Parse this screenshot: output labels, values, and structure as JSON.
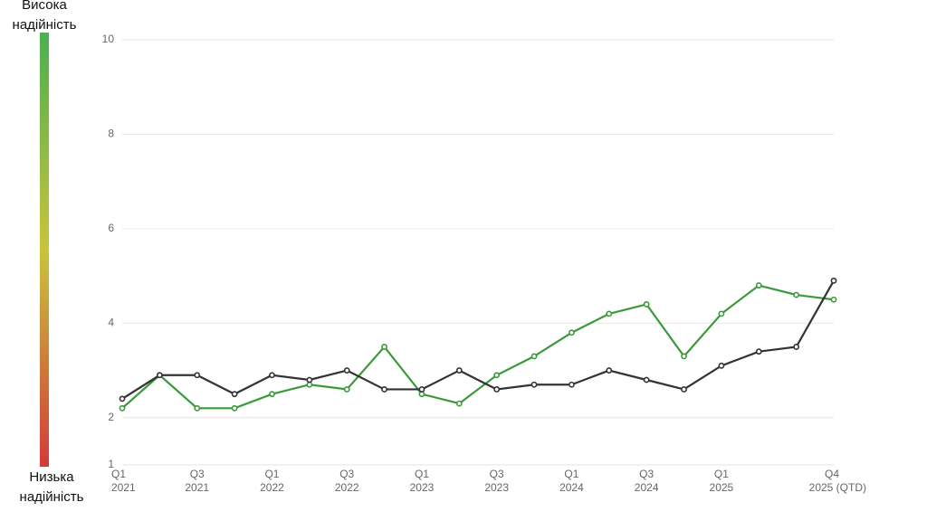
{
  "chart_data": {
    "type": "line",
    "scale": {
      "top": [
        "Висока",
        "надійність"
      ],
      "bottom": [
        "Низька",
        "надійність"
      ],
      "colors": [
        "#4caf50",
        "#c9c43b",
        "#d43a3a"
      ]
    },
    "categories": [
      [
        "Q1",
        "2021"
      ],
      null,
      [
        "Q3",
        "2021"
      ],
      null,
      [
        "Q1",
        "2022"
      ],
      null,
      [
        "Q3",
        "2022"
      ],
      null,
      [
        "Q1",
        "2023"
      ],
      null,
      [
        "Q3",
        "2023"
      ],
      null,
      [
        "Q1",
        "2024"
      ],
      null,
      [
        "Q3",
        "2024"
      ],
      null,
      [
        "Q1",
        "2025"
      ],
      null,
      null,
      [
        "Q4",
        "2025 (QTD)"
      ]
    ],
    "series": [
      {
        "color": "#3a9a3a",
        "values": [
          2.2,
          2.9,
          2.2,
          2.2,
          2.5,
          2.7,
          2.6,
          3.5,
          2.5,
          2.3,
          2.9,
          3.3,
          3.8,
          4.2,
          4.4,
          3.3,
          4.2,
          4.8,
          4.6,
          4.5
        ]
      },
      {
        "color": "#333333",
        "values": [
          2.4,
          2.9,
          2.9,
          2.5,
          2.9,
          2.8,
          3.0,
          2.6,
          2.6,
          3.0,
          2.6,
          2.7,
          2.7,
          3.0,
          2.8,
          2.6,
          3.1,
          3.4,
          3.5,
          4.9
        ]
      }
    ],
    "ylim": [
      1,
      10
    ],
    "yticks": [
      1,
      2,
      4,
      6,
      8,
      10
    ],
    "grid": true
  }
}
